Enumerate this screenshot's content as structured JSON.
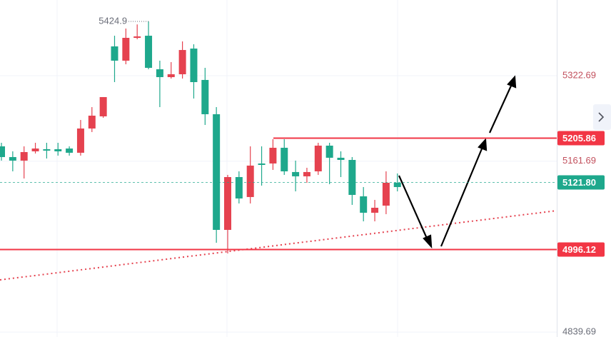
{
  "chart_data": {
    "type": "candlestick",
    "up_color": "#e5424f",
    "down_color": "#1ea88c",
    "ylim": [
      4830.4,
      5465.3
    ],
    "yticks": [
      5322.69,
      5161.69,
      4839.69
    ],
    "grid": true,
    "open": [
      5189.6,
      5169.4,
      5162.7,
      5180.2,
      5184.2,
      5184.2,
      5185.5,
      5177.5,
      5223.2,
      5246.1,
      5377.9,
      5351.0,
      5394.0,
      5398.0,
      5334.8,
      5320.0,
      5325.4,
      5373.8,
      5314.7,
      5250.1,
      5032.2,
      5131.7,
      5094.1,
      5157.3,
      5157.3,
      5186.9,
      5141.2,
      5133.1,
      5142.5,
      5190.9,
      5168.1,
      5164.0,
      5095.4,
      5064.5,
      5077.9,
      5121.0
    ],
    "high": [
      5196.3,
      5180.2,
      5189.6,
      5196.3,
      5196.3,
      5196.3,
      5189.6,
      5239.3,
      5263.5,
      5282.4,
      5398.0,
      5411.5,
      5419.29,
      5424.9,
      5351.0,
      5348.3,
      5387.3,
      5381.9,
      5337.5,
      5263.5,
      5135.8,
      5142.5,
      5189.6,
      5189.6,
      5203.0,
      5203.0,
      5162.7,
      5149.2,
      5196.3,
      5196.3,
      5180.2,
      5169.4,
      5112.9,
      5088.7,
      5142.5,
      5138.5
    ],
    "low": [
      5162.7,
      5142.5,
      5129.0,
      5176.1,
      5166.7,
      5172.1,
      5172.1,
      5172.1,
      5216.5,
      5243.4,
      5310.6,
      5344.2,
      5391.3,
      5334.8,
      5263.5,
      5317.3,
      5317.3,
      5279.7,
      5229.9,
      5008.0,
      4987.8,
      5082.0,
      5082.0,
      5115.6,
      5145.2,
      5135.8,
      5104.8,
      5121.0,
      5135.8,
      5118.3,
      5131.7,
      5079.3,
      5048.3,
      5048.3,
      5061.8,
      5104.8
    ],
    "close": [
      5169.4,
      5162.7,
      5178.8,
      5185.5,
      5181.5,
      5180.2,
      5177.5,
      5223.2,
      5247.4,
      5282.4,
      5351.0,
      5394.0,
      5396.7,
      5337.5,
      5320.0,
      5325.4,
      5371.1,
      5310.6,
      5250.1,
      5032.2,
      5131.7,
      5091.4,
      5153.3,
      5154.6,
      5186.9,
      5142.5,
      5133.1,
      5141.2,
      5190.9,
      5168.1,
      5164.0,
      5098.1,
      5064.5,
      5073.9,
      5121.0,
      5112.9
    ],
    "levels": [
      {
        "value": 5205.86,
        "label": "5205.86",
        "color": "#f23645"
      },
      {
        "value": 5121.8,
        "label": "5121.80",
        "color": "#1ea88c"
      },
      {
        "value": 4996.12,
        "label": "4996.12",
        "color": "#f23645"
      }
    ]
  }
}
